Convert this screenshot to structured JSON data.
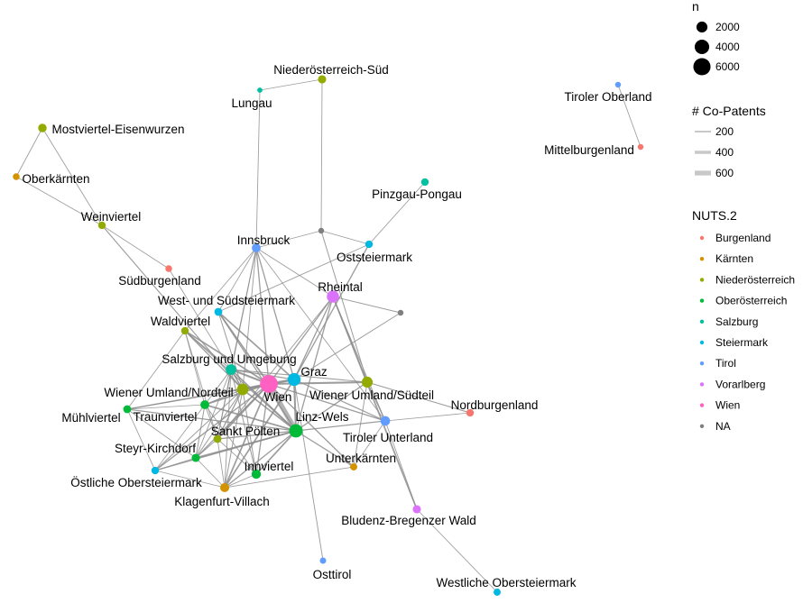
{
  "legend": {
    "size": {
      "title": "n",
      "items": [
        {
          "label": "2000",
          "n": 2000
        },
        {
          "label": "4000",
          "n": 4000
        },
        {
          "label": "6000",
          "n": 6000
        }
      ]
    },
    "edges": {
      "title": "# Co-Patents",
      "items": [
        {
          "label": "200",
          "w": 200
        },
        {
          "label": "400",
          "w": 400
        },
        {
          "label": "600",
          "w": 600
        }
      ]
    },
    "nuts": {
      "title": "NUTS.2",
      "items": [
        {
          "label": "Burgenland",
          "color": "#F8766D"
        },
        {
          "label": "Kärnten",
          "color": "#D39200"
        },
        {
          "label": "Niederösterreich",
          "color": "#93AA00"
        },
        {
          "label": "Oberösterreich",
          "color": "#00BA38"
        },
        {
          "label": "Salzburg",
          "color": "#00C19F"
        },
        {
          "label": "Steiermark",
          "color": "#00B9E3"
        },
        {
          "label": "Tirol",
          "color": "#619CFF"
        },
        {
          "label": "Vorarlberg",
          "color": "#DB72FB"
        },
        {
          "label": "Wien",
          "color": "#FF61C3"
        },
        {
          "label": "NA",
          "color": "#7F7F7F"
        }
      ]
    }
  },
  "nodes": [
    {
      "id": "wien",
      "label": "Wien",
      "group": "Wien",
      "n": 6500
    },
    {
      "id": "graz",
      "label": "Graz",
      "group": "Steiermark",
      "n": 3000
    },
    {
      "id": "linz",
      "label": "Linz-Wels",
      "group": "Oberösterreich",
      "n": 3300
    },
    {
      "id": "rheintal",
      "label": "Rheintal",
      "group": "Vorarlberg",
      "n": 2600
    },
    {
      "id": "wun",
      "label": "Wiener Umland/Nordteil",
      "group": "Niederösterreich",
      "n": 2200
    },
    {
      "id": "wus",
      "label": "Wiener Umland/Südteil",
      "group": "Niederösterreich",
      "n": 2000
    },
    {
      "id": "salzburg",
      "label": "Salzburg und Umgebung",
      "group": "Salzburg",
      "n": 1800
    },
    {
      "id": "innsbruck",
      "label": "Innsbruck",
      "group": "Tirol",
      "n": 1100
    },
    {
      "id": "tirunt",
      "label": "Tiroler Unterland",
      "group": "Tirol",
      "n": 1400
    },
    {
      "id": "innviertel",
      "label": "Innviertel",
      "group": "Oberösterreich",
      "n": 1300
    },
    {
      "id": "klagenfurt",
      "label": "Klagenfurt-Villach",
      "group": "Kärnten",
      "n": 1200
    },
    {
      "id": "traunviertel",
      "label": "Traunviertel",
      "group": "Oberösterreich",
      "n": 1100
    },
    {
      "id": "steyr",
      "label": "Steyr-Kirchdorf",
      "group": "Oberösterreich",
      "n": 900
    },
    {
      "id": "stpoelten",
      "label": "Sankt Pölten",
      "group": "Niederösterreich",
      "n": 800
    },
    {
      "id": "muehl",
      "label": "Mühlviertel",
      "group": "Oberösterreich",
      "n": 800
    },
    {
      "id": "westsued",
      "label": "West- und Südsteiermark",
      "group": "Steiermark",
      "n": 800
    },
    {
      "id": "waldviertel",
      "label": "Waldviertel",
      "group": "Niederösterreich",
      "n": 700
    },
    {
      "id": "oststeier",
      "label": "Oststeiermark",
      "group": "Steiermark",
      "n": 700
    },
    {
      "id": "oestober",
      "label": "Östliche Obersteiermark",
      "group": "Steiermark",
      "n": 700
    },
    {
      "id": "unterkaernten",
      "label": "Unterkärnten",
      "group": "Kärnten",
      "n": 600
    },
    {
      "id": "bludenz",
      "label": "Bludenz-Bregenzer Wald",
      "group": "Vorarlberg",
      "n": 900
    },
    {
      "id": "nordburg",
      "label": "Nordburgenland",
      "group": "Burgenland",
      "n": 700
    },
    {
      "id": "suedburg",
      "label": "Südburgenland",
      "group": "Burgenland",
      "n": 500
    },
    {
      "id": "weinviertel",
      "label": "Weinviertel",
      "group": "Niederösterreich",
      "n": 700
    },
    {
      "id": "mostviertel",
      "label": "Mostviertel-Eisenwurzen",
      "group": "Niederösterreich",
      "n": 1000
    },
    {
      "id": "oberkaernten",
      "label": "Oberkärnten",
      "group": "Kärnten",
      "n": 500
    },
    {
      "id": "noesued",
      "label": "Niederösterreich-Süd",
      "group": "Niederösterreich",
      "n": 900
    },
    {
      "id": "lungau",
      "label": "Lungau",
      "group": "Salzburg",
      "n": 200
    },
    {
      "id": "pinzgau",
      "label": "Pinzgau-Pongau",
      "group": "Salzburg",
      "n": 700
    },
    {
      "id": "osttirol",
      "label": "Osttirol",
      "group": "Tirol",
      "n": 400
    },
    {
      "id": "westober",
      "label": "Westliche Obersteiermark",
      "group": "Steiermark",
      "n": 600
    },
    {
      "id": "tirober",
      "label": "Tiroler Oberland",
      "group": "Tirol",
      "n": 300
    },
    {
      "id": "mittelburg",
      "label": "Mittelburgenland",
      "group": "Burgenland",
      "n": 300
    },
    {
      "id": "na1",
      "label": "",
      "group": "NA",
      "n": 300
    },
    {
      "id": "na2",
      "label": "",
      "group": "NA",
      "n": 300
    }
  ],
  "edges": [
    {
      "from": "wien",
      "to": "linz",
      "w": 650
    },
    {
      "from": "wien",
      "to": "graz",
      "w": 300
    },
    {
      "from": "wien",
      "to": "wun",
      "w": 300
    },
    {
      "from": "wien",
      "to": "salzburg",
      "w": 200
    },
    {
      "from": "wien",
      "to": "rheintal",
      "w": 100
    },
    {
      "from": "wien",
      "to": "wus",
      "w": 200
    },
    {
      "from": "wien",
      "to": "innsbruck",
      "w": 100
    },
    {
      "from": "wien",
      "to": "tirunt",
      "w": 100
    },
    {
      "from": "wien",
      "to": "westsued",
      "w": 150
    },
    {
      "from": "wien",
      "to": "waldviertel",
      "w": 150
    },
    {
      "from": "wien",
      "to": "traunviertel",
      "w": 150
    },
    {
      "from": "wien",
      "to": "stpoelten",
      "w": 150
    },
    {
      "from": "wien",
      "to": "innviertel",
      "w": 100
    },
    {
      "from": "wien",
      "to": "klagenfurt",
      "w": 150
    },
    {
      "from": "wien",
      "to": "steyr",
      "w": 100
    },
    {
      "from": "wien",
      "to": "muehl",
      "w": 100
    },
    {
      "from": "wien",
      "to": "oestober",
      "w": 100
    },
    {
      "from": "wien",
      "to": "unterkaernten",
      "w": 100
    },
    {
      "from": "graz",
      "to": "linz",
      "w": 200
    },
    {
      "from": "graz",
      "to": "wun",
      "w": 150
    },
    {
      "from": "graz",
      "to": "salzburg",
      "w": 100
    },
    {
      "from": "graz",
      "to": "westsued",
      "w": 150
    },
    {
      "from": "graz",
      "to": "oststeier",
      "w": 100
    },
    {
      "from": "graz",
      "to": "rheintal",
      "w": 100
    },
    {
      "from": "graz",
      "to": "innsbruck",
      "w": 100
    },
    {
      "from": "graz",
      "to": "klagenfurt",
      "w": 150
    },
    {
      "from": "graz",
      "to": "tirunt",
      "w": 80
    },
    {
      "from": "graz",
      "to": "na2",
      "w": 60
    },
    {
      "from": "graz",
      "to": "osttirol",
      "w": 50
    },
    {
      "from": "linz",
      "to": "wun",
      "w": 150
    },
    {
      "from": "linz",
      "to": "salzburg",
      "w": 150
    },
    {
      "from": "linz",
      "to": "traunviertel",
      "w": 150
    },
    {
      "from": "linz",
      "to": "innviertel",
      "w": 150
    },
    {
      "from": "linz",
      "to": "steyr",
      "w": 150
    },
    {
      "from": "linz",
      "to": "muehl",
      "w": 100
    },
    {
      "from": "linz",
      "to": "stpoelten",
      "w": 100
    },
    {
      "from": "linz",
      "to": "tirunt",
      "w": 100
    },
    {
      "from": "linz",
      "to": "rheintal",
      "w": 100
    },
    {
      "from": "linz",
      "to": "unterkaernten",
      "w": 100
    },
    {
      "from": "linz",
      "to": "wus",
      "w": 100
    },
    {
      "from": "linz",
      "to": "oestober",
      "w": 100
    },
    {
      "from": "linz",
      "to": "klagenfurt",
      "w": 100
    },
    {
      "from": "linz",
      "to": "westsued",
      "w": 80
    },
    {
      "from": "linz",
      "to": "waldviertel",
      "w": 80
    },
    {
      "from": "rheintal",
      "to": "bludenz",
      "w": 150
    },
    {
      "from": "rheintal",
      "to": "innsbruck",
      "w": 50
    },
    {
      "from": "rheintal",
      "to": "tirunt",
      "w": 50
    },
    {
      "from": "rheintal",
      "to": "na2",
      "w": 50
    },
    {
      "from": "rheintal",
      "to": "wus",
      "w": 50
    },
    {
      "from": "rheintal",
      "to": "stpoelten",
      "w": 50
    },
    {
      "from": "wun",
      "to": "salzburg",
      "w": 100
    },
    {
      "from": "wun",
      "to": "waldviertel",
      "w": 100
    },
    {
      "from": "wun",
      "to": "stpoelten",
      "w": 100
    },
    {
      "from": "wun",
      "to": "weinviertel",
      "w": 80
    },
    {
      "from": "wun",
      "to": "traunviertel",
      "w": 80
    },
    {
      "from": "wun",
      "to": "klagenfurt",
      "w": 60
    },
    {
      "from": "wun",
      "to": "innviertel",
      "w": 60
    },
    {
      "from": "wun",
      "to": "steyr",
      "w": 60
    },
    {
      "from": "wun",
      "to": "muehl",
      "w": 60
    },
    {
      "from": "wun",
      "to": "oestober",
      "w": 60
    },
    {
      "from": "wun",
      "to": "westsued",
      "w": 60
    },
    {
      "from": "wun",
      "to": "innsbruck",
      "w": 50
    },
    {
      "from": "wus",
      "to": "nordburg",
      "w": 80
    },
    {
      "from": "wus",
      "to": "tirunt",
      "w": 80
    },
    {
      "from": "wus",
      "to": "na1",
      "w": 60
    },
    {
      "from": "wus",
      "to": "unterkaernten",
      "w": 50
    },
    {
      "from": "wus",
      "to": "salzburg",
      "w": 60
    },
    {
      "from": "salzburg",
      "to": "innsbruck",
      "w": 60
    },
    {
      "from": "salzburg",
      "to": "traunviertel",
      "w": 60
    },
    {
      "from": "salzburg",
      "to": "innviertel",
      "w": 60
    },
    {
      "from": "salzburg",
      "to": "waldviertel",
      "w": 50
    },
    {
      "from": "salzburg",
      "to": "stpoelten",
      "w": 60
    },
    {
      "from": "salzburg",
      "to": "steyr",
      "w": 50
    },
    {
      "from": "salzburg",
      "to": "klagenfurt",
      "w": 50
    },
    {
      "from": "innsbruck",
      "to": "na1",
      "w": 40
    },
    {
      "from": "innsbruck",
      "to": "westsued",
      "w": 40
    },
    {
      "from": "innsbruck",
      "to": "stpoelten",
      "w": 40
    },
    {
      "from": "innsbruck",
      "to": "waldviertel",
      "w": 40
    },
    {
      "from": "innsbruck",
      "to": "tirunt",
      "w": 40
    },
    {
      "from": "tirunt",
      "to": "nordburg",
      "w": 40
    },
    {
      "from": "tirunt",
      "to": "unterkaernten",
      "w": 40
    },
    {
      "from": "tirunt",
      "to": "bludenz",
      "w": 40
    },
    {
      "from": "na1",
      "to": "noesued",
      "w": 40
    },
    {
      "from": "na1",
      "to": "oststeier",
      "w": 40
    },
    {
      "from": "noesued",
      "to": "lungau",
      "w": 40
    },
    {
      "from": "lungau",
      "to": "innsbruck",
      "w": 40
    },
    {
      "from": "oststeier",
      "to": "pinzgau",
      "w": 40
    },
    {
      "from": "oststeier",
      "to": "westsued",
      "w": 40
    },
    {
      "from": "mostviertel",
      "to": "oberkaernten",
      "w": 40
    },
    {
      "from": "mostviertel",
      "to": "weinviertel",
      "w": 40
    },
    {
      "from": "oberkaernten",
      "to": "weinviertel",
      "w": 40
    },
    {
      "from": "weinviertel",
      "to": "suedburg",
      "w": 40
    },
    {
      "from": "suedburg",
      "to": "wun",
      "w": 40
    },
    {
      "from": "waldviertel",
      "to": "muehl",
      "w": 40
    },
    {
      "from": "waldviertel",
      "to": "traunviertel",
      "w": 40
    },
    {
      "from": "waldviertel",
      "to": "stpoelten",
      "w": 40
    },
    {
      "from": "traunviertel",
      "to": "muehl",
      "w": 40
    },
    {
      "from": "traunviertel",
      "to": "steyr",
      "w": 60
    },
    {
      "from": "traunviertel",
      "to": "innviertel",
      "w": 50
    },
    {
      "from": "traunviertel",
      "to": "stpoelten",
      "w": 50
    },
    {
      "from": "traunviertel",
      "to": "oestober",
      "w": 40
    },
    {
      "from": "steyr",
      "to": "klagenfurt",
      "w": 40
    },
    {
      "from": "steyr",
      "to": "oestober",
      "w": 40
    },
    {
      "from": "steyr",
      "to": "muehl",
      "w": 40
    },
    {
      "from": "steyr",
      "to": "stpoelten",
      "w": 40
    },
    {
      "from": "stpoelten",
      "to": "innviertel",
      "w": 40
    },
    {
      "from": "stpoelten",
      "to": "klagenfurt",
      "w": 40
    },
    {
      "from": "innviertel",
      "to": "klagenfurt",
      "w": 40
    },
    {
      "from": "muehl",
      "to": "oestober",
      "w": 40
    },
    {
      "from": "oestober",
      "to": "klagenfurt",
      "w": 40
    },
    {
      "from": "unterkaernten",
      "to": "klagenfurt",
      "w": 40
    },
    {
      "from": "bludenz",
      "to": "westober",
      "w": 40
    },
    {
      "from": "tirober",
      "to": "mittelburg",
      "w": 40
    }
  ]
}
